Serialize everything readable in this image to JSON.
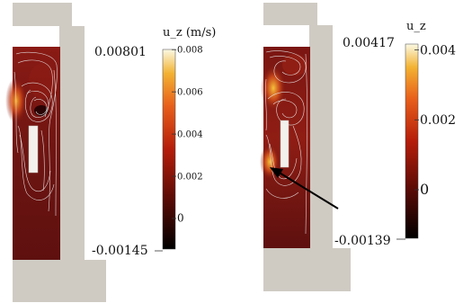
{
  "panels": [
    {
      "colorbar": {
        "title": "u_z (m/s)",
        "max_label": "0.00801",
        "min_label": "-0.00145",
        "ticks": [
          {
            "label": "0.008",
            "value": 0.008
          },
          {
            "label": "0.006",
            "value": 0.006
          },
          {
            "label": "0.004",
            "value": 0.004
          },
          {
            "label": "0.002",
            "value": 0.002
          },
          {
            "label": "0",
            "value": 0
          }
        ],
        "range": [
          -0.00145,
          0.00801
        ],
        "colormap": "black-body"
      }
    },
    {
      "colorbar": {
        "title": "u_z",
        "max_label": "0.00417",
        "min_label": "-0.00139",
        "ticks": [
          {
            "label": "0.004",
            "value": 0.004
          },
          {
            "label": "0.002",
            "value": 0.002
          },
          {
            "label": "0",
            "value": 0
          }
        ],
        "range": [
          -0.00139,
          0.00417
        ],
        "colormap": "black-body"
      },
      "annotation": "arrow"
    }
  ],
  "colors": {
    "geometry_gray": "#cfcbc3",
    "field_base": "#6b1212",
    "streamline": "#ececec"
  }
}
